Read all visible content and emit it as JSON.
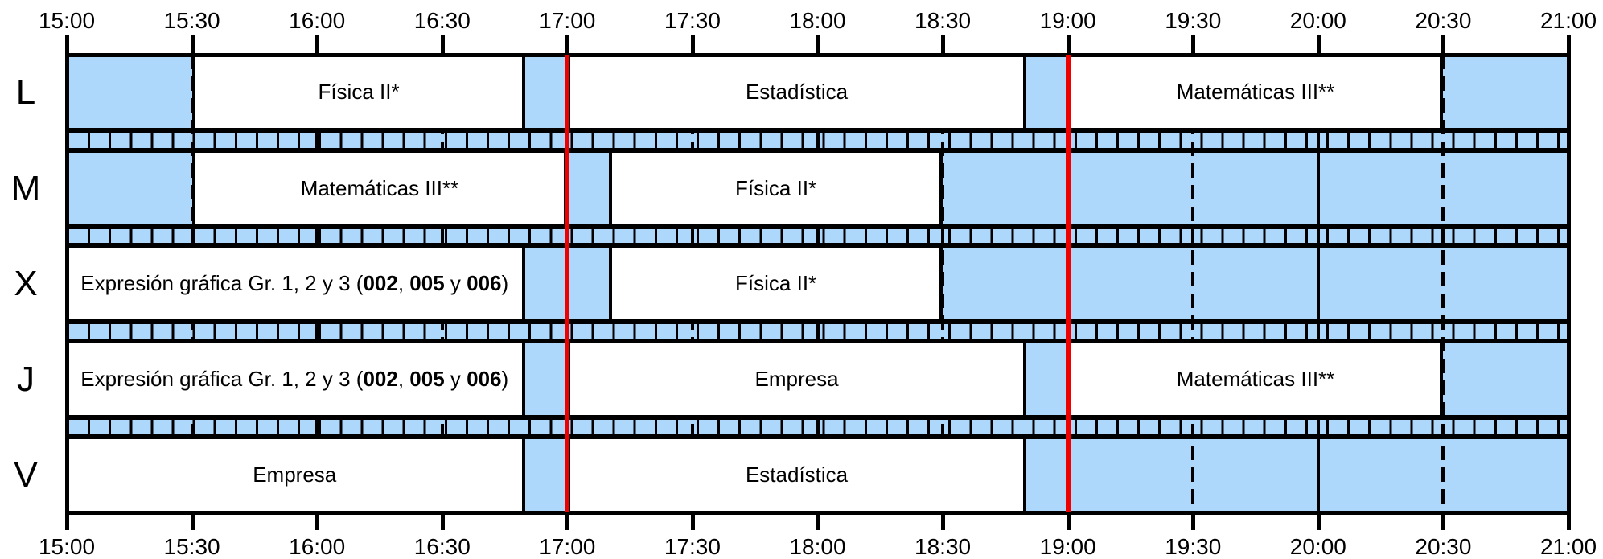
{
  "time_ticks": [
    "15:00",
    "15:30",
    "16:00",
    "16:30",
    "17:00",
    "17:30",
    "18:00",
    "18:30",
    "19:00",
    "19:30",
    "20:00",
    "20:30",
    "21:00"
  ],
  "days": [
    {
      "label": "L",
      "classes": [
        {
          "name": "Física II*",
          "start": "15:30",
          "end": "16:50"
        },
        {
          "name": "Estadística",
          "start": "17:00",
          "end": "18:50"
        },
        {
          "name": "Matemáticas III**",
          "start": "19:00",
          "end": "20:30"
        }
      ]
    },
    {
      "label": "M",
      "classes": [
        {
          "name": "Matemáticas III**",
          "start": "15:30",
          "end": "17:00"
        },
        {
          "name": "Física II*",
          "start": "17:10",
          "end": "18:30"
        }
      ]
    },
    {
      "label": "X",
      "classes": [
        {
          "name": "Expresión gráfica Gr. 1, 2 y 3 (002, 005 y 006)",
          "start": "15:00",
          "end": "16:50",
          "parts": [
            "Expresión gráfica Gr. 1, 2 y 3 (",
            "002",
            ", ",
            "005",
            " y ",
            "006",
            ")"
          ]
        },
        {
          "name": "Física II*",
          "start": "17:10",
          "end": "18:30"
        }
      ]
    },
    {
      "label": "J",
      "classes": [
        {
          "name": "Expresión gráfica Gr. 1, 2 y 3 (002, 005 y 006)",
          "start": "15:00",
          "end": "16:50",
          "parts": [
            "Expresión gráfica Gr. 1, 2 y 3 (",
            "002",
            ", ",
            "005",
            " y ",
            "006",
            ")"
          ]
        },
        {
          "name": "Empresa",
          "start": "17:00",
          "end": "18:50"
        },
        {
          "name": "Matemáticas III**",
          "start": "19:00",
          "end": "20:30"
        }
      ]
    },
    {
      "label": "V",
      "classes": [
        {
          "name": "Empresa",
          "start": "15:00",
          "end": "16:50"
        },
        {
          "name": "Estadística",
          "start": "17:00",
          "end": "18:50"
        }
      ]
    }
  ],
  "highlight_times": [
    "17:00",
    "19:00"
  ],
  "colors": {
    "free_slot": "#aed8fb",
    "class_block": "#ffffff",
    "highlight_line": "#ee0000",
    "grid": "#000000"
  }
}
